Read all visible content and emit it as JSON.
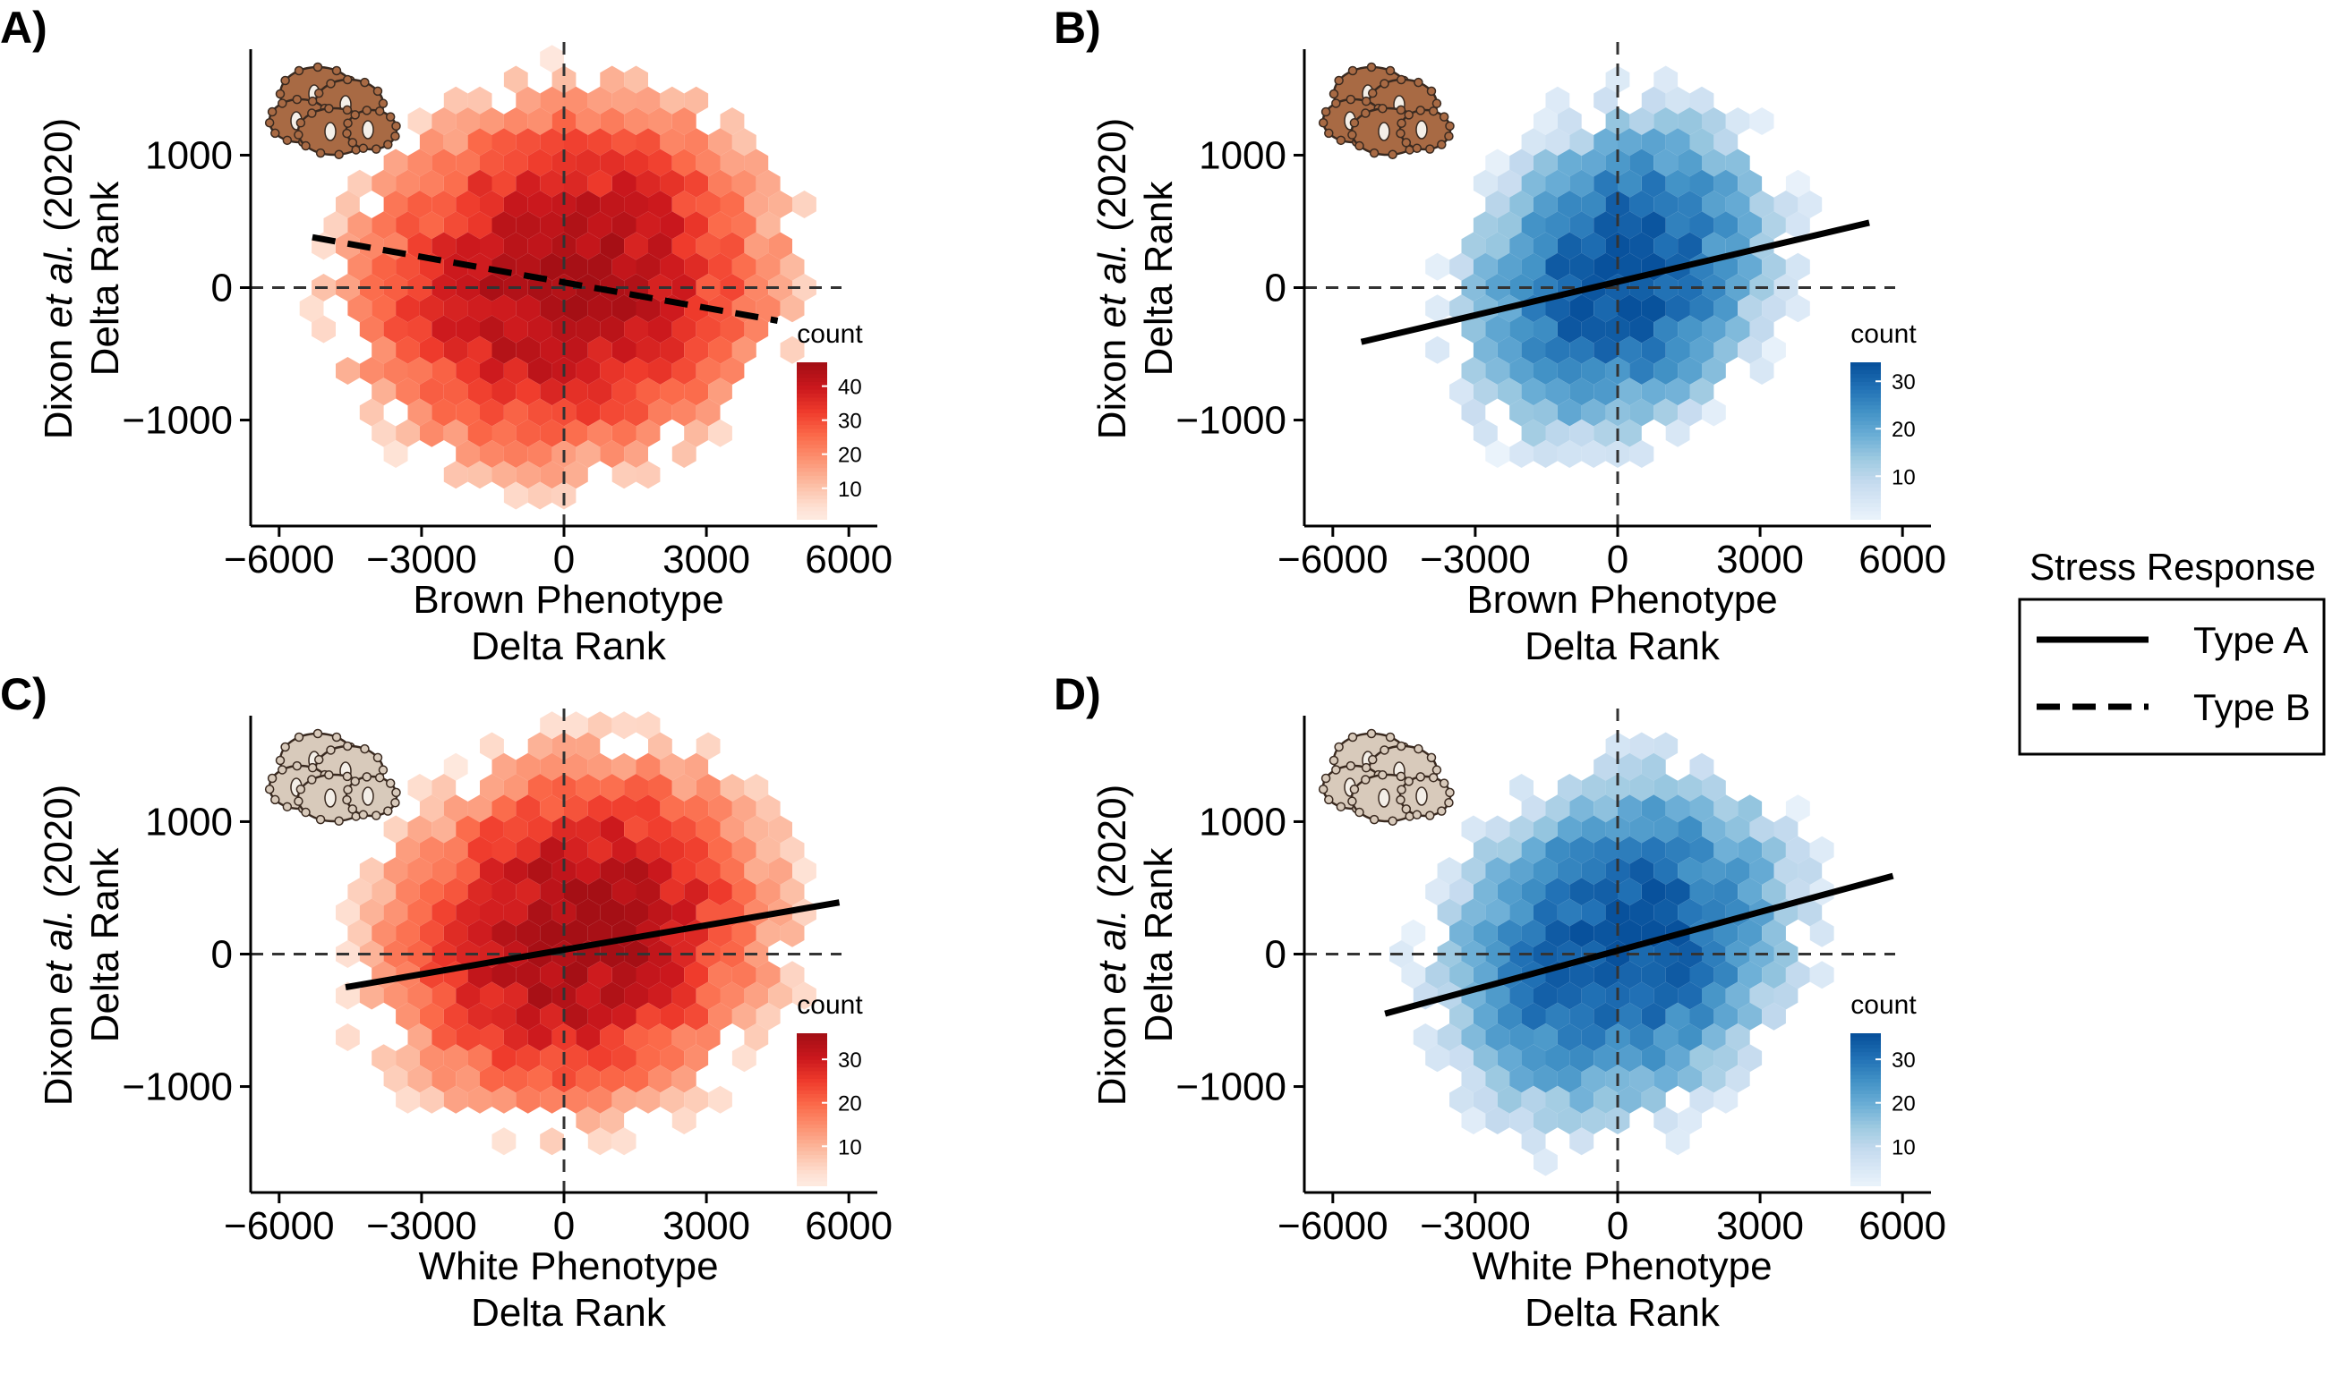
{
  "chart_data": [
    {
      "panel": "A)",
      "type": "heatmap",
      "subtype": "hexbin",
      "xlabel": "Brown Phenotype\nDelta Rank",
      "ylabel_prefix": "Dixon ",
      "ylabel_italic": "et al.",
      "ylabel_suffix": " (2020)",
      "ylabel_line2": "Delta Rank",
      "x_ticks": [
        "−6000",
        "−3000",
        "0",
        "3000",
        "6000"
      ],
      "x_tick_values": [
        -6000,
        -3000,
        0,
        3000,
        6000
      ],
      "y_ticks": [
        "1000",
        "0",
        "−1000"
      ],
      "y_tick_values": [
        1000,
        0,
        -1000
      ],
      "xlim": [
        -6600,
        6600
      ],
      "ylim": [
        -1800,
        1800
      ],
      "colormap": "Reds",
      "colorbar": {
        "title": "count",
        "ticks": [
          "40",
          "30",
          "20",
          "10"
        ],
        "tick_values": [
          40,
          30,
          20,
          10
        ],
        "range": [
          1,
          47
        ]
      },
      "density": {
        "sx": 2000,
        "sy": 620,
        "peak": 47,
        "rho": 0.08,
        "cx": 0,
        "cy": 50
      },
      "regression": {
        "style": "dashed",
        "stress_response": "Type B",
        "x": [
          -5300,
          4500
        ],
        "y": [
          380,
          -250
        ]
      },
      "guide_lines": {
        "x": 0,
        "y": 0
      },
      "coral_color": "#a86a44"
    },
    {
      "panel": "B)",
      "type": "heatmap",
      "subtype": "hexbin",
      "xlabel": "Brown Phenotype\nDelta Rank",
      "ylabel_prefix": "Dixon ",
      "ylabel_italic": "et al.",
      "ylabel_suffix": " (2020)",
      "ylabel_line2": "Delta Rank",
      "x_ticks": [
        "−6000",
        "−3000",
        "0",
        "3000",
        "6000"
      ],
      "x_tick_values": [
        -6000,
        -3000,
        0,
        3000,
        6000
      ],
      "y_ticks": [
        "1000",
        "0",
        "−1000"
      ],
      "y_tick_values": [
        1000,
        0,
        -1000
      ],
      "xlim": [
        -6600,
        6600
      ],
      "ylim": [
        -1800,
        1800
      ],
      "colormap": "Blues",
      "colorbar": {
        "title": "count",
        "ticks": [
          "30",
          "20",
          "10"
        ],
        "tick_values": [
          30,
          20,
          10
        ],
        "range": [
          1,
          34
        ]
      },
      "density": {
        "sx": 1500,
        "sy": 560,
        "peak": 34,
        "rho": 0.22,
        "cx": 0,
        "cy": 80
      },
      "regression": {
        "style": "solid",
        "stress_response": "Type A",
        "x": [
          -5400,
          5300
        ],
        "y": [
          -410,
          490
        ]
      },
      "guide_lines": {
        "x": 0,
        "y": 0
      },
      "coral_color": "#a86a44"
    },
    {
      "panel": "C)",
      "type": "heatmap",
      "subtype": "hexbin",
      "xlabel": "White Phenotype\nDelta Rank",
      "ylabel_prefix": "Dixon ",
      "ylabel_italic": "et al.",
      "ylabel_suffix": " (2020)",
      "ylabel_line2": "Delta Rank",
      "x_ticks": [
        "−6000",
        "−3000",
        "0",
        "3000",
        "6000"
      ],
      "x_tick_values": [
        -6000,
        -3000,
        0,
        3000,
        6000
      ],
      "y_ticks": [
        "1000",
        "0",
        "−1000"
      ],
      "y_tick_values": [
        1000,
        0,
        -1000
      ],
      "xlim": [
        -6600,
        6600
      ],
      "ylim": [
        -1800,
        1800
      ],
      "colormap": "Reds",
      "colorbar": {
        "title": "count",
        "ticks": [
          "30",
          "20",
          "10"
        ],
        "tick_values": [
          30,
          20,
          10
        ],
        "range": [
          1,
          36
        ]
      },
      "density": {
        "sx": 1900,
        "sy": 620,
        "peak": 36,
        "rho": 0.12,
        "cx": 300,
        "cy": 150
      },
      "regression": {
        "style": "solid",
        "stress_response": "Type A",
        "x": [
          -4600,
          5800
        ],
        "y": [
          -250,
          390
        ]
      },
      "guide_lines": {
        "x": 0,
        "y": 0
      },
      "coral_color": "#d8cabb"
    },
    {
      "panel": "D)",
      "type": "heatmap",
      "subtype": "hexbin",
      "xlabel": "White Phenotype\nDelta Rank",
      "ylabel_prefix": "Dixon ",
      "ylabel_italic": "et al.",
      "ylabel_suffix": " (2020)",
      "ylabel_line2": "Delta Rank",
      "x_ticks": [
        "−6000",
        "−3000",
        "0",
        "3000",
        "6000"
      ],
      "x_tick_values": [
        -6000,
        -3000,
        0,
        3000,
        6000
      ],
      "y_ticks": [
        "1000",
        "0",
        "−1000"
      ],
      "y_tick_values": [
        1000,
        0,
        -1000
      ],
      "xlim": [
        -6600,
        6600
      ],
      "ylim": [
        -1800,
        1800
      ],
      "colormap": "Blues",
      "colorbar": {
        "title": "count",
        "ticks": [
          "30",
          "20",
          "10"
        ],
        "tick_values": [
          30,
          20,
          10
        ],
        "range": [
          1,
          36
        ]
      },
      "density": {
        "sx": 1700,
        "sy": 600,
        "peak": 36,
        "rho": 0.2,
        "cx": 0,
        "cy": 60
      },
      "regression": {
        "style": "solid",
        "stress_response": "Type A",
        "x": [
          -4900,
          5800
        ],
        "y": [
          -450,
          590
        ]
      },
      "guide_lines": {
        "x": 0,
        "y": 0
      },
      "coral_color": "#d8cabb"
    }
  ],
  "legend": {
    "title": "Stress Response",
    "items": [
      {
        "label": "Type A",
        "style": "solid"
      },
      {
        "label": "Type B",
        "style": "dashed"
      }
    ]
  }
}
